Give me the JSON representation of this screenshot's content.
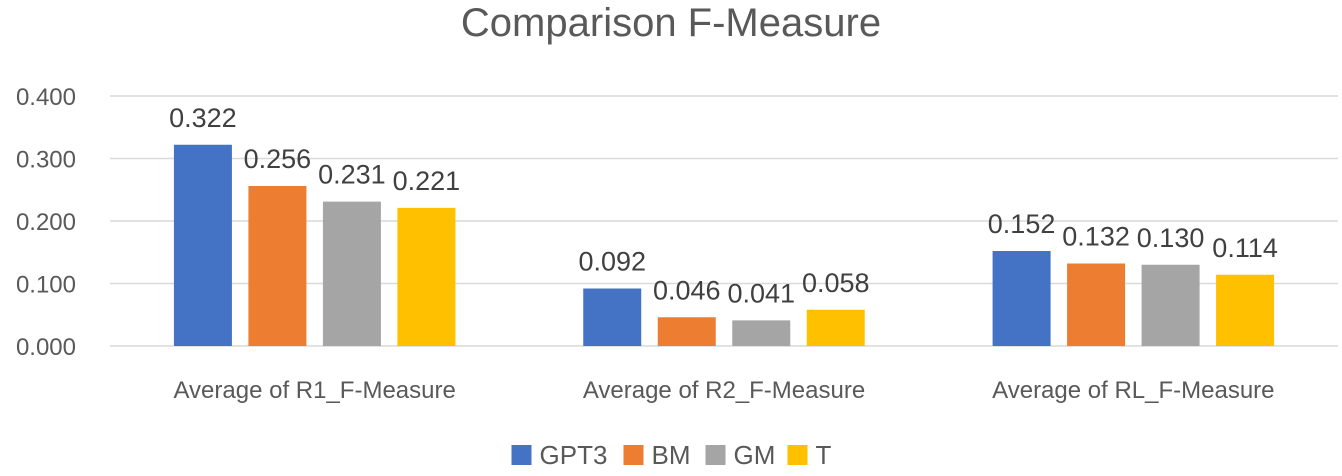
{
  "chart_data": {
    "type": "bar",
    "title": "Comparison F-Measure",
    "categories": [
      "Average of R1_F-Measure",
      "Average of R2_F-Measure",
      "Average of RL_F-Measure"
    ],
    "series": [
      {
        "name": "GPT3",
        "color": "#4472c4",
        "values": [
          0.322,
          0.092,
          0.152
        ],
        "labels": [
          "0.322",
          "0.092",
          "0.152"
        ]
      },
      {
        "name": "BM",
        "color": "#ed7d31",
        "values": [
          0.256,
          0.046,
          0.132
        ],
        "labels": [
          "0.256",
          "0.046",
          "0.132"
        ]
      },
      {
        "name": "GM",
        "color": "#a5a5a5",
        "values": [
          0.231,
          0.041,
          0.13
        ],
        "labels": [
          "0.231",
          "0.041",
          "0.130"
        ]
      },
      {
        "name": "T",
        "color": "#ffc000",
        "values": [
          0.221,
          0.058,
          0.114
        ],
        "labels": [
          "0.221",
          "0.058",
          "0.114"
        ]
      }
    ],
    "yticks": [
      "0.000",
      "0.100",
      "0.200",
      "0.300",
      "0.400"
    ],
    "ylim": [
      0,
      0.4
    ],
    "xlabel": "",
    "ylabel": "",
    "grid": true,
    "legend_position": "bottom"
  }
}
